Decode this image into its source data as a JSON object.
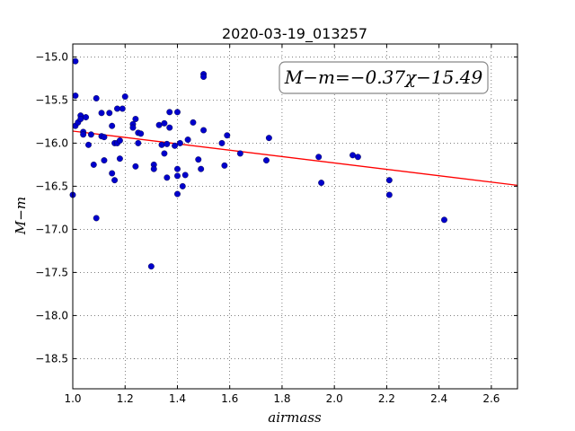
{
  "chart_data": {
    "type": "scatter",
    "title": "2020-03-19_013257",
    "xlabel": "airmass",
    "ylabel": "M−m",
    "xlim": [
      1.0,
      2.7
    ],
    "ylim": [
      -14.85,
      -18.85
    ],
    "y_inverted": true,
    "grid": true,
    "x_ticks": [
      1.0,
      1.2,
      1.4,
      1.6,
      1.8,
      2.0,
      2.2,
      2.4,
      2.6
    ],
    "x_tick_labels": [
      "1.0",
      "1.2",
      "1.4",
      "1.6",
      "1.8",
      "2.0",
      "2.2",
      "2.4",
      "2.6"
    ],
    "y_ticks": [
      -15.0,
      -15.5,
      -16.0,
      -16.5,
      -17.0,
      -17.5,
      -18.0,
      -18.5
    ],
    "y_tick_labels": [
      "−15.0",
      "−15.5",
      "−16.0",
      "−16.5",
      "−17.0",
      "−17.5",
      "−18.0",
      "−18.5"
    ],
    "annotation": "M−m=−0.37χ−15.49",
    "fit": {
      "slope": -0.37,
      "intercept": -15.49,
      "color": "#ff0000"
    },
    "point_color": "#0000cc",
    "points": [
      [
        1.0,
        -16.6
      ],
      [
        1.01,
        -15.05
      ],
      [
        1.01,
        -15.45
      ],
      [
        1.01,
        -15.8
      ],
      [
        1.02,
        -15.76
      ],
      [
        1.03,
        -15.68
      ],
      [
        1.03,
        -15.72
      ],
      [
        1.04,
        -15.87
      ],
      [
        1.04,
        -15.9
      ],
      [
        1.05,
        -15.7
      ],
      [
        1.06,
        -16.02
      ],
      [
        1.07,
        -15.9
      ],
      [
        1.08,
        -16.25
      ],
      [
        1.09,
        -15.48
      ],
      [
        1.09,
        -16.87
      ],
      [
        1.11,
        -15.65
      ],
      [
        1.11,
        -15.92
      ],
      [
        1.12,
        -15.93
      ],
      [
        1.12,
        -16.2
      ],
      [
        1.14,
        -15.65
      ],
      [
        1.15,
        -15.8
      ],
      [
        1.15,
        -16.35
      ],
      [
        1.16,
        -16.0
      ],
      [
        1.16,
        -16.43
      ],
      [
        1.17,
        -15.6
      ],
      [
        1.17,
        -16.0
      ],
      [
        1.18,
        -15.97
      ],
      [
        1.18,
        -16.18
      ],
      [
        1.19,
        -15.6
      ],
      [
        1.2,
        -15.46
      ],
      [
        1.23,
        -15.78
      ],
      [
        1.23,
        -15.82
      ],
      [
        1.24,
        -15.72
      ],
      [
        1.24,
        -16.27
      ],
      [
        1.25,
        -15.88
      ],
      [
        1.25,
        -16.0
      ],
      [
        1.26,
        -15.89
      ],
      [
        1.3,
        -17.43
      ],
      [
        1.31,
        -16.25
      ],
      [
        1.31,
        -16.3
      ],
      [
        1.33,
        -15.79
      ],
      [
        1.34,
        -16.02
      ],
      [
        1.35,
        -15.77
      ],
      [
        1.35,
        -16.12
      ],
      [
        1.36,
        -16.01
      ],
      [
        1.36,
        -16.4
      ],
      [
        1.37,
        -15.64
      ],
      [
        1.37,
        -15.82
      ],
      [
        1.39,
        -16.03
      ],
      [
        1.4,
        -15.64
      ],
      [
        1.4,
        -16.3
      ],
      [
        1.4,
        -16.38
      ],
      [
        1.4,
        -16.59
      ],
      [
        1.41,
        -16.0
      ],
      [
        1.42,
        -16.5
      ],
      [
        1.43,
        -16.37
      ],
      [
        1.44,
        -15.96
      ],
      [
        1.46,
        -15.76
      ],
      [
        1.48,
        -16.19
      ],
      [
        1.49,
        -16.3
      ],
      [
        1.5,
        -15.2
      ],
      [
        1.5,
        -15.23
      ],
      [
        1.5,
        -15.85
      ],
      [
        1.57,
        -16.0
      ],
      [
        1.58,
        -16.26
      ],
      [
        1.59,
        -15.91
      ],
      [
        1.64,
        -16.12
      ],
      [
        1.74,
        -16.2
      ],
      [
        1.75,
        -15.94
      ],
      [
        1.94,
        -16.16
      ],
      [
        1.95,
        -16.46
      ],
      [
        2.07,
        -16.14
      ],
      [
        2.09,
        -16.16
      ],
      [
        2.21,
        -16.43
      ],
      [
        2.21,
        -16.6
      ],
      [
        2.42,
        -16.89
      ]
    ]
  }
}
